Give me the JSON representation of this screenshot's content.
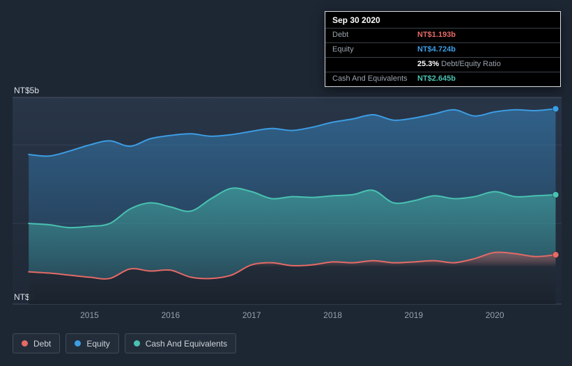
{
  "page": {
    "background": "#1d2633"
  },
  "tooltip": {
    "date": "Sep 30 2020",
    "debt_label": "Debt",
    "debt_value": "NT$1.193b",
    "equity_label": "Equity",
    "equity_value": "NT$4.724b",
    "ratio_value": "25.3%",
    "ratio_label": "Debt/Equity Ratio",
    "cash_label": "Cash And Equivalents",
    "cash_value": "NT$2.645b"
  },
  "chart_data": {
    "type": "area",
    "x": [
      2014.25,
      2014.5,
      2014.75,
      2015,
      2015.25,
      2015.5,
      2015.75,
      2016,
      2016.25,
      2016.5,
      2016.75,
      2017,
      2017.25,
      2017.5,
      2017.75,
      2018,
      2018.25,
      2018.5,
      2018.75,
      2019,
      2019.25,
      2019.5,
      2019.75,
      2020,
      2020.25,
      2020.5,
      2020.75
    ],
    "series": [
      {
        "name": "Debt",
        "color": "#e66a66",
        "area_fill": [
          [
            0,
            "rgba(205,95,95,0.38)"
          ],
          [
            0.28,
            "rgba(33,41,53,0.92)"
          ],
          [
            1,
            "rgba(26,33,44,0.96)"
          ]
        ],
        "values": [
          0.78,
          0.75,
          0.7,
          0.65,
          0.62,
          0.85,
          0.8,
          0.82,
          0.65,
          0.62,
          0.7,
          0.95,
          1.0,
          0.93,
          0.95,
          1.02,
          1.0,
          1.05,
          1.0,
          1.02,
          1.05,
          1.0,
          1.1,
          1.25,
          1.22,
          1.15,
          1.193
        ]
      },
      {
        "name": "Equity",
        "color": "#3c9de4",
        "area_fill": [
          [
            0,
            "rgba(60,157,228,0.42)"
          ],
          [
            1,
            "rgba(60,157,228,0.07)"
          ]
        ],
        "values": [
          3.62,
          3.58,
          3.7,
          3.85,
          3.95,
          3.82,
          4.0,
          4.08,
          4.12,
          4.06,
          4.1,
          4.18,
          4.25,
          4.2,
          4.28,
          4.4,
          4.48,
          4.58,
          4.45,
          4.5,
          4.6,
          4.7,
          4.55,
          4.65,
          4.7,
          4.68,
          4.724
        ]
      },
      {
        "name": "Cash And Equivalents",
        "color": "#49c2b1",
        "area_fill": [
          [
            0,
            "rgba(73,194,177,0.50)"
          ],
          [
            1,
            "rgba(73,194,177,0.05)"
          ]
        ],
        "values": [
          1.95,
          1.92,
          1.85,
          1.88,
          1.95,
          2.3,
          2.45,
          2.35,
          2.25,
          2.55,
          2.8,
          2.72,
          2.55,
          2.6,
          2.58,
          2.62,
          2.65,
          2.75,
          2.45,
          2.5,
          2.62,
          2.55,
          2.6,
          2.72,
          2.6,
          2.62,
          2.645
        ]
      }
    ],
    "x_ticks": [
      {
        "value": 2015,
        "label": "2015"
      },
      {
        "value": 2016,
        "label": "2016"
      },
      {
        "value": 2017,
        "label": "2017"
      },
      {
        "value": 2018,
        "label": "2018"
      },
      {
        "value": 2019,
        "label": "2019"
      },
      {
        "value": 2020,
        "label": "2020"
      }
    ],
    "y_ticks": [
      {
        "value": 5,
        "label": "NT$5b"
      },
      {
        "value": 0,
        "label": "NT$0"
      }
    ],
    "minor_gridlines": [
      3.85,
      1.95
    ],
    "ylim": [
      0,
      5
    ],
    "xlim": [
      2014.3,
      2020.78
    ],
    "legend_position": "bottom-left",
    "grid": true
  }
}
